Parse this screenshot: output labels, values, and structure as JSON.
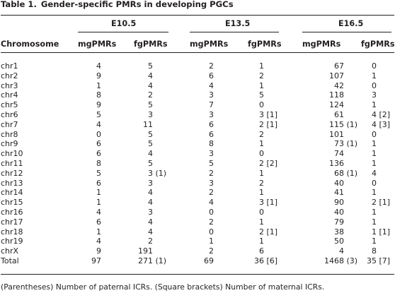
{
  "caption": {
    "label": "Table 1.",
    "title": "Gender-specific PMRs in developing PGCs"
  },
  "groups": [
    "E10.5",
    "E13.5",
    "E16.5"
  ],
  "columns": [
    "Chromosome",
    "mgPMRs",
    "fgPMRs",
    "mgPMRs",
    "fgPMRs",
    "mgPMRs",
    "fgPMRs"
  ],
  "rows": [
    {
      "chr": "chr1",
      "e105_mg": "4",
      "e105_fg": "5",
      "e135_mg": "2",
      "e135_fg": "1",
      "e165_mg": "67",
      "e165_fg": "0"
    },
    {
      "chr": "chr2",
      "e105_mg": "9",
      "e105_fg": "4",
      "e135_mg": "6",
      "e135_fg": "2",
      "e165_mg": "107",
      "e165_fg": "1"
    },
    {
      "chr": "chr3",
      "e105_mg": "1",
      "e105_fg": "4",
      "e135_mg": "4",
      "e135_fg": "1",
      "e165_mg": "42",
      "e165_fg": "0"
    },
    {
      "chr": "chr4",
      "e105_mg": "8",
      "e105_fg": "2",
      "e135_mg": "3",
      "e135_fg": "5",
      "e165_mg": "118",
      "e165_fg": "3"
    },
    {
      "chr": "chr5",
      "e105_mg": "9",
      "e105_fg": "5",
      "e135_mg": "7",
      "e135_fg": "0",
      "e165_mg": "124",
      "e165_fg": "1"
    },
    {
      "chr": "chr6",
      "e105_mg": "5",
      "e105_fg": "3",
      "e135_mg": "3",
      "e135_fg": "3 [1]",
      "e165_mg": "61",
      "e165_fg": "4 [2]"
    },
    {
      "chr": "chr7",
      "e105_mg": "4",
      "e105_fg": "11",
      "e135_mg": "6",
      "e135_fg": "2 [1]",
      "e165_mg": "115 (1)",
      "e165_fg": "4 [3]"
    },
    {
      "chr": "chr8",
      "e105_mg": "0",
      "e105_fg": "5",
      "e135_mg": "6",
      "e135_fg": "2",
      "e165_mg": "101",
      "e165_fg": "0"
    },
    {
      "chr": "chr9",
      "e105_mg": "6",
      "e105_fg": "5",
      "e135_mg": "8",
      "e135_fg": "1",
      "e165_mg": "73 (1)",
      "e165_fg": "1"
    },
    {
      "chr": "chr10",
      "e105_mg": "6",
      "e105_fg": "4",
      "e135_mg": "3",
      "e135_fg": "0",
      "e165_mg": "74",
      "e165_fg": "1"
    },
    {
      "chr": "chr11",
      "e105_mg": "8",
      "e105_fg": "5",
      "e135_mg": "5",
      "e135_fg": "2 [2]",
      "e165_mg": "136",
      "e165_fg": "1"
    },
    {
      "chr": "chr12",
      "e105_mg": "5",
      "e105_fg": "3 (1)",
      "e135_mg": "2",
      "e135_fg": "1",
      "e165_mg": "68 (1)",
      "e165_fg": "4"
    },
    {
      "chr": "chr13",
      "e105_mg": "6",
      "e105_fg": "3",
      "e135_mg": "3",
      "e135_fg": "2",
      "e165_mg": "40",
      "e165_fg": "0"
    },
    {
      "chr": "chr14",
      "e105_mg": "1",
      "e105_fg": "4",
      "e135_mg": "2",
      "e135_fg": "1",
      "e165_mg": "41",
      "e165_fg": "1"
    },
    {
      "chr": "chr15",
      "e105_mg": "1",
      "e105_fg": "4",
      "e135_mg": "4",
      "e135_fg": "3 [1]",
      "e165_mg": "90",
      "e165_fg": "2 [1]"
    },
    {
      "chr": "chr16",
      "e105_mg": "4",
      "e105_fg": "3",
      "e135_mg": "0",
      "e135_fg": "0",
      "e165_mg": "40",
      "e165_fg": "1"
    },
    {
      "chr": "chr17",
      "e105_mg": "6",
      "e105_fg": "4",
      "e135_mg": "2",
      "e135_fg": "1",
      "e165_mg": "79",
      "e165_fg": "1"
    },
    {
      "chr": "chr18",
      "e105_mg": "1",
      "e105_fg": "4",
      "e135_mg": "0",
      "e135_fg": "2 [1]",
      "e165_mg": "38",
      "e165_fg": "1 [1]"
    },
    {
      "chr": "chr19",
      "e105_mg": "4",
      "e105_fg": "2",
      "e135_mg": "1",
      "e135_fg": "1",
      "e165_mg": "50",
      "e165_fg": "1"
    },
    {
      "chr": "chrX",
      "e105_mg": "9",
      "e105_fg": "191",
      "e135_mg": "2",
      "e135_fg": "6",
      "e165_mg": "4",
      "e165_fg": "8"
    },
    {
      "chr": "Total",
      "e105_mg": "97",
      "e105_fg": "271 (1)",
      "e135_mg": "69",
      "e135_fg": "36 [6]",
      "e165_mg": "1468 (3)",
      "e165_fg": "35 [7]"
    }
  ],
  "footnote": "(Parentheses) Number of paternal ICRs. (Square brackets) Number of maternal ICRs."
}
